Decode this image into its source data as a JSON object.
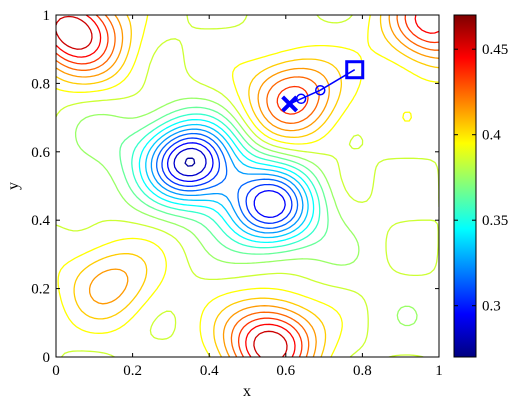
{
  "chart_data": {
    "type": "contour",
    "xlabel": "x",
    "ylabel": "y",
    "xlim": [
      0,
      1
    ],
    "ylim": [
      0,
      1
    ],
    "xticks": [
      "0",
      "0.2",
      "0.4",
      "0.6",
      "0.8",
      "1"
    ],
    "yticks": [
      "0",
      "0.2",
      "0.4",
      "0.6",
      "0.8",
      "1"
    ],
    "colorbar": {
      "range": [
        0.27,
        0.47
      ],
      "ticks": [
        "0.3",
        "0.35",
        "0.4",
        "0.45"
      ],
      "colormap": "jet"
    },
    "minima": [
      {
        "x": 0.35,
        "y": 0.57,
        "value": 0.275
      },
      {
        "x": 0.56,
        "y": 0.44,
        "value": 0.29
      },
      {
        "x": 0.14,
        "y": 0.64,
        "value": 0.375
      },
      {
        "x": 0.09,
        "y": 0.48,
        "value": 0.38
      },
      {
        "x": 0.77,
        "y": 0.3,
        "value": 0.38
      },
      {
        "x": 0.8,
        "y": 0.46,
        "value": 0.385
      },
      {
        "x": 0.92,
        "y": 0.75,
        "value": 0.39
      },
      {
        "x": 0.92,
        "y": 0.1,
        "value": 0.38
      }
    ],
    "maxima": [
      {
        "x": 0.56,
        "y": 0.04,
        "value": 0.465
      },
      {
        "x": 0.62,
        "y": 0.76,
        "value": 0.44
      },
      {
        "x": 0.14,
        "y": 0.22,
        "value": 0.42
      },
      {
        "x": 0.1,
        "y": 0.9,
        "value": 0.41
      },
      {
        "x": 0.03,
        "y": 0.97,
        "value": 0.45
      },
      {
        "x": 0.98,
        "y": 0.98,
        "value": 0.45
      }
    ],
    "path": {
      "start": {
        "x": 0.78,
        "y": 0.84
      },
      "waypoints": [
        {
          "x": 0.69,
          "y": 0.78
        },
        {
          "x": 0.64,
          "y": 0.755
        }
      ],
      "end": {
        "x": 0.61,
        "y": 0.74
      },
      "color": "#0000ff"
    }
  }
}
